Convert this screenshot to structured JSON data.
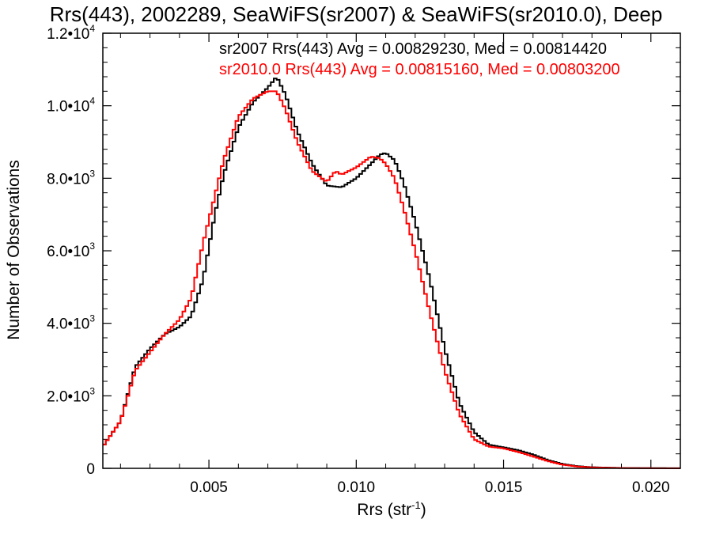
{
  "chart_data": {
    "type": "line",
    "title": "Rrs(443), 2002289, SeaWiFS(sr2007) & SeaWiFS(sr2010.0), Deep",
    "xlabel": "Rrs (str",
    "xlabel_sup": "-1",
    "xlabel_close": ")",
    "ylabel": "Number of Observations",
    "xlim": [
      0.0014,
      0.021
    ],
    "ylim": [
      0,
      12000
    ],
    "x_ticks": [
      {
        "value": 0.005,
        "label": "0.005"
      },
      {
        "value": 0.01,
        "label": "0.010"
      },
      {
        "value": 0.015,
        "label": "0.015"
      },
      {
        "value": 0.02,
        "label": "0.020"
      }
    ],
    "y_ticks": [
      {
        "value": 0,
        "mant": "0",
        "exp": ""
      },
      {
        "value": 2000,
        "mant": "2.0•10",
        "exp": "3"
      },
      {
        "value": 4000,
        "mant": "4.0•10",
        "exp": "3"
      },
      {
        "value": 6000,
        "mant": "6.0•10",
        "exp": "3"
      },
      {
        "value": 8000,
        "mant": "8.0•10",
        "exp": "3"
      },
      {
        "value": 10000,
        "mant": "1.0•10",
        "exp": "4"
      },
      {
        "value": 12000,
        "mant": "1.2•10",
        "exp": "4"
      }
    ],
    "grid": false,
    "step": "histogram",
    "annotations": [
      {
        "text": "sr2007 Rrs(443) Avg = 0.00829230, Med = 0.00814420",
        "color": "#000000"
      },
      {
        "text": "sr2010.0 Rrs(443) Avg = 0.00815160, Med = 0.00803200",
        "color": "#ff0000"
      }
    ],
    "series": [
      {
        "color": "#000000",
        "points": [
          [
            0.0014,
            600
          ],
          [
            0.002,
            1300
          ],
          [
            0.0025,
            2800
          ],
          [
            0.003,
            3300
          ],
          [
            0.0035,
            3700
          ],
          [
            0.004,
            3900
          ],
          [
            0.0044,
            4200
          ],
          [
            0.0048,
            5200
          ],
          [
            0.0052,
            7000
          ],
          [
            0.0055,
            8100
          ],
          [
            0.006,
            9400
          ],
          [
            0.0065,
            10100
          ],
          [
            0.007,
            10500
          ],
          [
            0.0073,
            10800
          ],
          [
            0.0076,
            10300
          ],
          [
            0.008,
            9300
          ],
          [
            0.0085,
            8400
          ],
          [
            0.009,
            7800
          ],
          [
            0.0095,
            7750
          ],
          [
            0.01,
            8000
          ],
          [
            0.0105,
            8400
          ],
          [
            0.0108,
            8650
          ],
          [
            0.011,
            8700
          ],
          [
            0.0113,
            8500
          ],
          [
            0.0116,
            7900
          ],
          [
            0.012,
            6800
          ],
          [
            0.0125,
            5200
          ],
          [
            0.013,
            3300
          ],
          [
            0.0135,
            1800
          ],
          [
            0.014,
            1000
          ],
          [
            0.0145,
            650
          ],
          [
            0.015,
            580
          ],
          [
            0.0155,
            500
          ],
          [
            0.016,
            380
          ],
          [
            0.0165,
            230
          ],
          [
            0.017,
            120
          ],
          [
            0.0175,
            60
          ],
          [
            0.018,
            30
          ],
          [
            0.019,
            10
          ],
          [
            0.02,
            5
          ],
          [
            0.021,
            3
          ]
        ]
      },
      {
        "color": "#ff0000",
        "points": [
          [
            0.0014,
            600
          ],
          [
            0.002,
            1300
          ],
          [
            0.0025,
            2700
          ],
          [
            0.003,
            3200
          ],
          [
            0.0035,
            3700
          ],
          [
            0.004,
            4100
          ],
          [
            0.0044,
            4700
          ],
          [
            0.0048,
            6200
          ],
          [
            0.0052,
            7500
          ],
          [
            0.0055,
            8500
          ],
          [
            0.006,
            9700
          ],
          [
            0.0065,
            10200
          ],
          [
            0.007,
            10400
          ],
          [
            0.0073,
            10400
          ],
          [
            0.0076,
            9900
          ],
          [
            0.008,
            9000
          ],
          [
            0.0085,
            8200
          ],
          [
            0.009,
            7900
          ],
          [
            0.0093,
            8200
          ],
          [
            0.0095,
            8100
          ],
          [
            0.01,
            8300
          ],
          [
            0.0105,
            8600
          ],
          [
            0.0108,
            8550
          ],
          [
            0.011,
            8400
          ],
          [
            0.0113,
            8000
          ],
          [
            0.0116,
            7200
          ],
          [
            0.012,
            6000
          ],
          [
            0.0125,
            4300
          ],
          [
            0.013,
            2700
          ],
          [
            0.0135,
            1500
          ],
          [
            0.014,
            800
          ],
          [
            0.0145,
            600
          ],
          [
            0.015,
            550
          ],
          [
            0.0155,
            450
          ],
          [
            0.016,
            330
          ],
          [
            0.0165,
            200
          ],
          [
            0.017,
            100
          ],
          [
            0.0175,
            50
          ],
          [
            0.018,
            25
          ],
          [
            0.019,
            8
          ],
          [
            0.02,
            4
          ],
          [
            0.021,
            2
          ]
        ]
      }
    ]
  }
}
